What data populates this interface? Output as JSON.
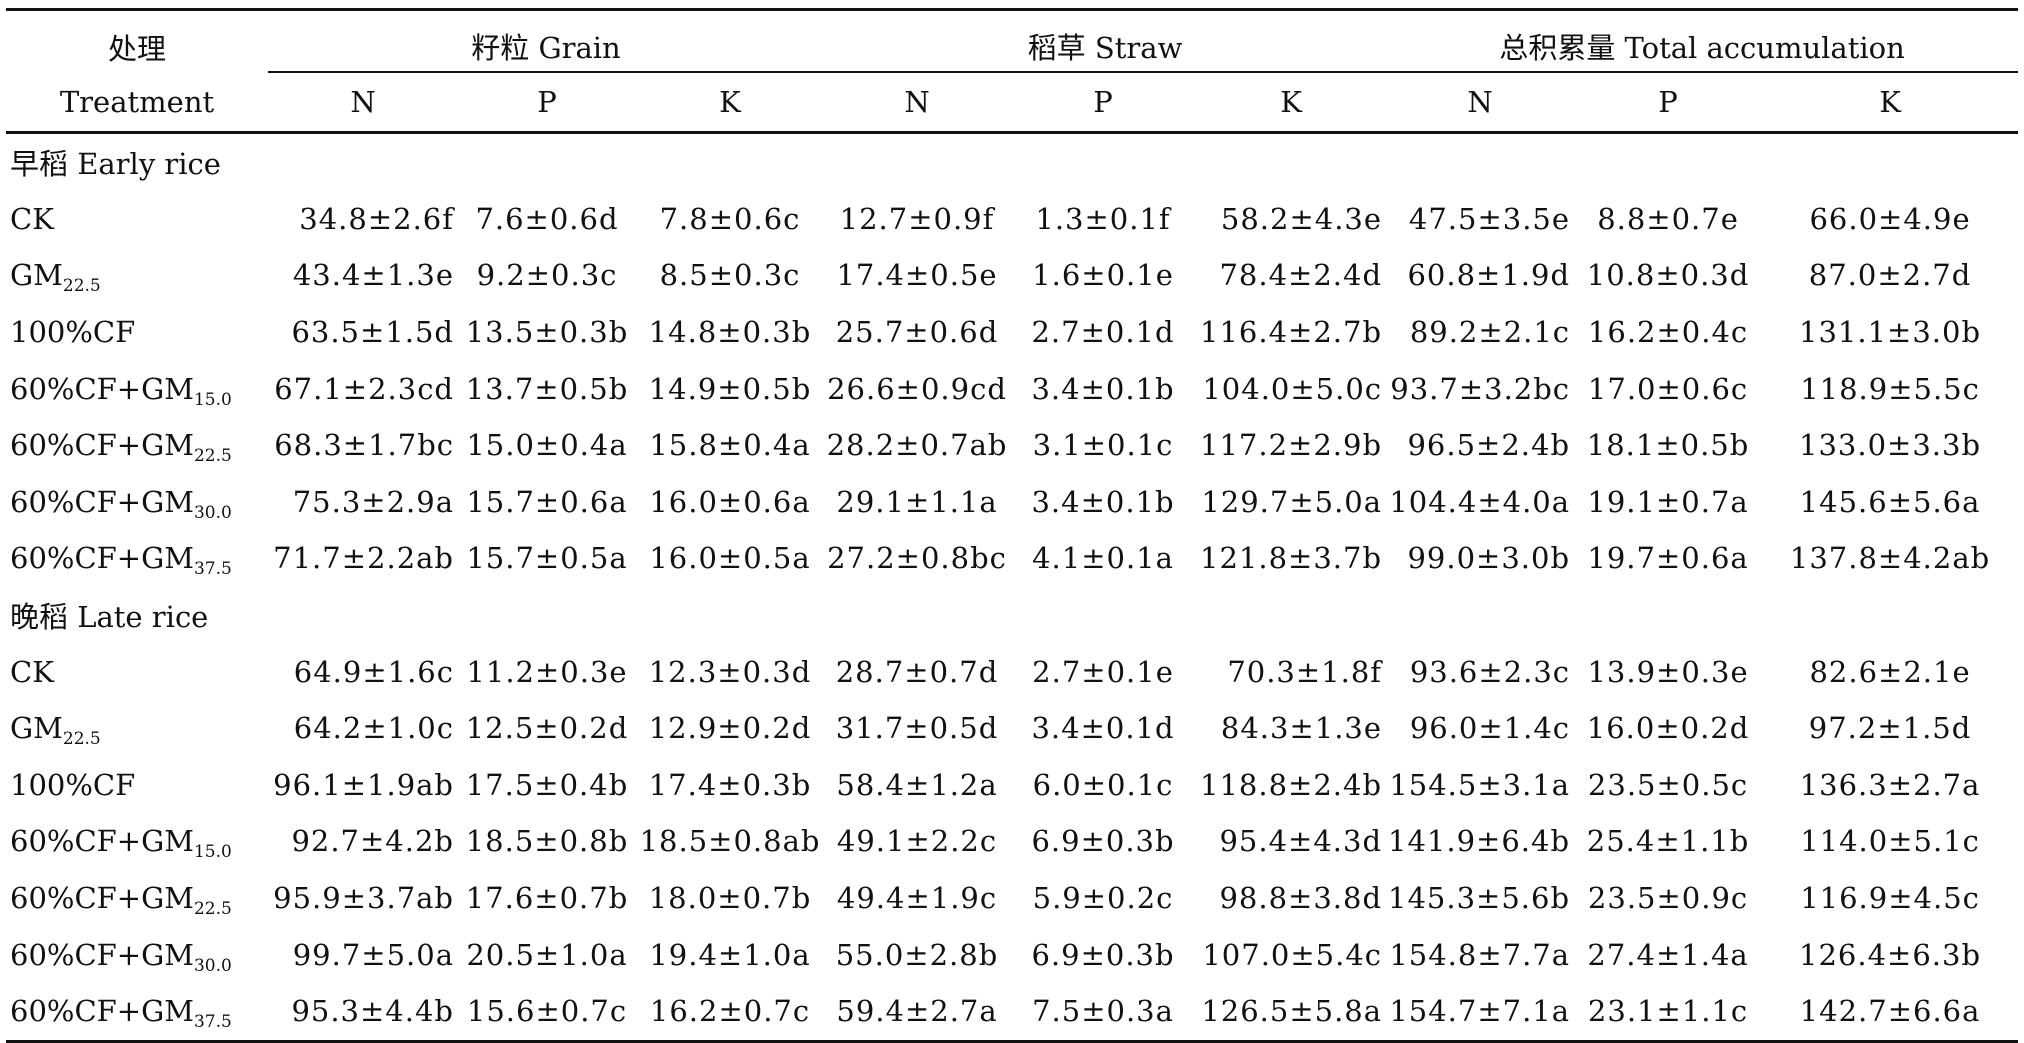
{
  "header": {
    "treatment_zh": "处理",
    "treatment_en": "Treatment",
    "groups": [
      {
        "label": "籽粒 Grain"
      },
      {
        "label": "稻草 Straw"
      },
      {
        "label": "总积累量 Total accumulation"
      }
    ],
    "subcols": [
      "N",
      "P",
      "K",
      "N",
      "P",
      "K",
      "N",
      "P",
      "K"
    ]
  },
  "sections": [
    {
      "title": "早稻 Early rice",
      "rows": [
        {
          "name": "CK",
          "sub": "",
          "values": [
            "34.8±2.6f",
            "7.6±0.6d",
            "7.8±0.6c",
            "12.7±0.9f",
            "1.3±0.1f",
            "58.2±4.3e",
            "47.5±3.5e",
            "8.8±0.7e",
            "66.0±4.9e"
          ]
        },
        {
          "name": "GM",
          "sub": "22.5",
          "values": [
            "43.4±1.3e",
            "9.2±0.3c",
            "8.5±0.3c",
            "17.4±0.5e",
            "1.6±0.1e",
            "78.4±2.4d",
            "60.8±1.9d",
            "10.8±0.3d",
            "87.0±2.7d"
          ]
        },
        {
          "name": "100%CF",
          "sub": "",
          "values": [
            "63.5±1.5d",
            "13.5±0.3b",
            "14.8±0.3b",
            "25.7±0.6d",
            "2.7±0.1d",
            "116.4±2.7b",
            "89.2±2.1c",
            "16.2±0.4c",
            "131.1±3.0b"
          ]
        },
        {
          "name": "60%CF+GM",
          "sub": "15.0",
          "values": [
            "67.1±2.3cd",
            "13.7±0.5b",
            "14.9±0.5b",
            "26.6±0.9cd",
            "3.4±0.1b",
            "104.0±5.0c",
            "93.7±3.2bc",
            "17.0±0.6c",
            "118.9±5.5c"
          ]
        },
        {
          "name": "60%CF+GM",
          "sub": "22.5",
          "values": [
            "68.3±1.7bc",
            "15.0±0.4a",
            "15.8±0.4a",
            "28.2±0.7ab",
            "3.1±0.1c",
            "117.2±2.9b",
            "96.5±2.4b",
            "18.1±0.5b",
            "133.0±3.3b"
          ]
        },
        {
          "name": "60%CF+GM",
          "sub": "30.0",
          "values": [
            "75.3±2.9a",
            "15.7±0.6a",
            "16.0±0.6a",
            "29.1±1.1a",
            "3.4±0.1b",
            "129.7±5.0a",
            "104.4±4.0a",
            "19.1±0.7a",
            "145.6±5.6a"
          ]
        },
        {
          "name": "60%CF+GM",
          "sub": "37.5",
          "values": [
            "71.7±2.2ab",
            "15.7±0.5a",
            "16.0±0.5a",
            "27.2±0.8bc",
            "4.1±0.1a",
            "121.8±3.7b",
            "99.0±3.0b",
            "19.7±0.6a",
            "137.8±4.2ab"
          ]
        }
      ]
    },
    {
      "title": "晚稻 Late rice",
      "rows": [
        {
          "name": "CK",
          "sub": "",
          "values": [
            "64.9±1.6c",
            "11.2±0.3e",
            "12.3±0.3d",
            "28.7±0.7d",
            "2.7±0.1e",
            "70.3±1.8f",
            "93.6±2.3c",
            "13.9±0.3e",
            "82.6±2.1e"
          ]
        },
        {
          "name": "GM",
          "sub": "22.5",
          "values": [
            "64.2±1.0c",
            "12.5±0.2d",
            "12.9±0.2d",
            "31.7±0.5d",
            "3.4±0.1d",
            "84.3±1.3e",
            "96.0±1.4c",
            "16.0±0.2d",
            "97.2±1.5d"
          ]
        },
        {
          "name": "100%CF",
          "sub": "",
          "values": [
            "96.1±1.9ab",
            "17.5±0.4b",
            "17.4±0.3b",
            "58.4±1.2a",
            "6.0±0.1c",
            "118.8±2.4b",
            "154.5±3.1a",
            "23.5±0.5c",
            "136.3±2.7a"
          ]
        },
        {
          "name": "60%CF+GM",
          "sub": "15.0",
          "values": [
            "92.7±4.2b",
            "18.5±0.8b",
            "18.5±0.8ab",
            "49.1±2.2c",
            "6.9±0.3b",
            "95.4±4.3d",
            "141.9±6.4b",
            "25.4±1.1b",
            "114.0±5.1c"
          ]
        },
        {
          "name": "60%CF+GM",
          "sub": "22.5",
          "values": [
            "95.9±3.7ab",
            "17.6±0.7b",
            "18.0±0.7b",
            "49.4±1.9c",
            "5.9±0.2c",
            "98.8±3.8d",
            "145.3±5.6b",
            "23.5±0.9c",
            "116.9±4.5c"
          ]
        },
        {
          "name": "60%CF+GM",
          "sub": "30.0",
          "values": [
            "99.7±5.0a",
            "20.5±1.0a",
            "19.4±1.0a",
            "55.0±2.8b",
            "6.9±0.3b",
            "107.0±5.4c",
            "154.8±7.7a",
            "27.4±1.4a",
            "126.4±6.3b"
          ]
        },
        {
          "name": "60%CF+GM",
          "sub": "37.5",
          "values": [
            "95.3±4.4b",
            "15.6±0.7c",
            "16.2±0.7c",
            "59.4±2.7a",
            "7.5±0.3a",
            "126.5±5.8a",
            "154.7±7.1a",
            "23.1±1.1c",
            "142.7±6.6a"
          ]
        }
      ]
    }
  ]
}
